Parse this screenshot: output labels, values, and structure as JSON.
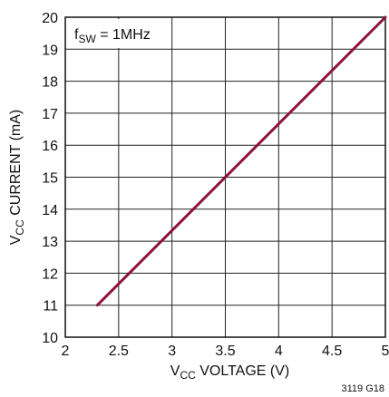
{
  "chart_data": {
    "type": "line",
    "title": "",
    "xlabel": {
      "prefix": "V",
      "sub": "CC",
      "suffix": " VOLTAGE (V)"
    },
    "ylabel": {
      "prefix": "V",
      "sub": "CC",
      "suffix": " CURRENT (mA)"
    },
    "xlim": [
      2,
      5
    ],
    "ylim": [
      10,
      20
    ],
    "x_ticks": [
      2,
      2.5,
      3,
      3.5,
      4,
      4.5,
      5
    ],
    "y_ticks": [
      10,
      11,
      12,
      13,
      14,
      15,
      16,
      17,
      18,
      19,
      20
    ],
    "x_tick_labels": [
      "2",
      "2.5",
      "3",
      "3.5",
      "4",
      "4.5",
      "5"
    ],
    "y_tick_labels": [
      "10",
      "11",
      "12",
      "13",
      "14",
      "15",
      "16",
      "17",
      "18",
      "19",
      "20"
    ],
    "grid": true,
    "annotation": {
      "prefix": "f",
      "sub": "SW",
      "suffix": " = 1MHz"
    },
    "figure_code": "3119 G18",
    "series": [
      {
        "color": "#8b1538",
        "x": [
          2.3,
          5.0
        ],
        "y": [
          11.0,
          20.0
        ]
      }
    ]
  }
}
